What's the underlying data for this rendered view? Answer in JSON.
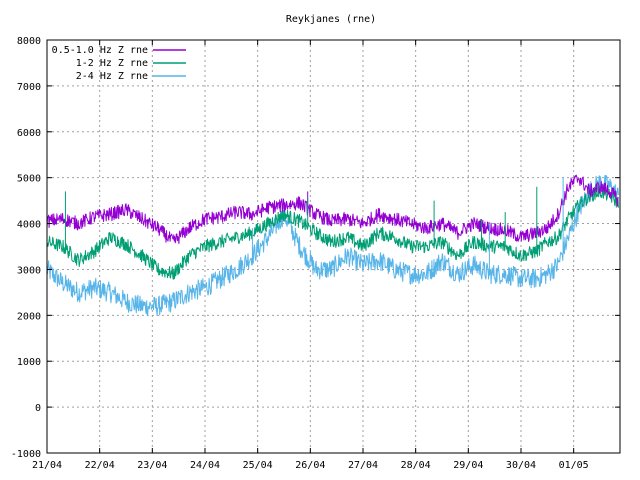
{
  "chart_data": {
    "type": "line",
    "title": "Reykjanes (rne)",
    "xlabel": "",
    "ylabel": "",
    "ylim": [
      -1000,
      8000
    ],
    "xlim": [
      0,
      10.88
    ],
    "yticks": [
      -1000,
      0,
      1000,
      2000,
      3000,
      4000,
      5000,
      6000,
      7000,
      8000
    ],
    "xtick_labels": [
      "21/04",
      "22/04",
      "23/04",
      "24/04",
      "25/04",
      "26/04",
      "27/04",
      "28/04",
      "29/04",
      "30/04",
      "01/05"
    ],
    "grid": true,
    "legend_position": "top-left",
    "series": [
      {
        "name": "0.5-1.0 Hz Z rne",
        "color": "#9400d3",
        "noise": 150,
        "x": [
          0,
          0.3,
          0.6,
          0.9,
          1.2,
          1.5,
          1.8,
          2.1,
          2.4,
          2.7,
          3.0,
          3.3,
          3.6,
          3.9,
          4.2,
          4.5,
          4.8,
          5.1,
          5.4,
          5.7,
          6.0,
          6.3,
          6.6,
          6.9,
          7.2,
          7.5,
          7.8,
          8.1,
          8.4,
          8.7,
          9.0,
          9.3,
          9.5,
          9.7,
          9.9,
          10.1,
          10.3,
          10.5,
          10.7,
          10.85
        ],
        "y": [
          4050,
          4100,
          4000,
          4150,
          4200,
          4300,
          4100,
          3900,
          3600,
          3900,
          4100,
          4150,
          4250,
          4200,
          4350,
          4400,
          4450,
          4200,
          4050,
          4100,
          4000,
          4200,
          4100,
          4000,
          3900,
          4000,
          3800,
          4000,
          3900,
          3850,
          3700,
          3800,
          3900,
          4200,
          4800,
          5000,
          4700,
          4800,
          4700,
          4500
        ]
      },
      {
        "name": "1-2 Hz Z rne",
        "color": "#009e73",
        "noise": 150,
        "x": [
          0,
          0.3,
          0.6,
          0.9,
          1.2,
          1.5,
          1.8,
          2.1,
          2.4,
          2.7,
          3.0,
          3.3,
          3.6,
          3.9,
          4.2,
          4.5,
          4.8,
          5.1,
          5.4,
          5.7,
          6.0,
          6.3,
          6.6,
          6.9,
          7.2,
          7.5,
          7.8,
          8.1,
          8.4,
          8.7,
          9.0,
          9.3,
          9.5,
          9.7,
          9.9,
          10.1,
          10.3,
          10.5,
          10.7,
          10.85
        ],
        "y": [
          3600,
          3500,
          3200,
          3400,
          3700,
          3550,
          3300,
          3000,
          2900,
          3300,
          3500,
          3600,
          3700,
          3800,
          4000,
          4200,
          4050,
          3800,
          3600,
          3700,
          3500,
          3800,
          3700,
          3500,
          3500,
          3600,
          3300,
          3600,
          3500,
          3500,
          3300,
          3400,
          3600,
          3700,
          4100,
          4400,
          4600,
          4700,
          4600,
          4450
        ]
      },
      {
        "name": "2-4 Hz Z rne",
        "color": "#56b4e9",
        "noise": 220,
        "x": [
          0,
          0.3,
          0.6,
          0.9,
          1.2,
          1.5,
          1.8,
          2.1,
          2.4,
          2.7,
          3.0,
          3.3,
          3.6,
          3.9,
          4.2,
          4.5,
          4.8,
          5.1,
          5.4,
          5.7,
          6.0,
          6.3,
          6.6,
          6.9,
          7.2,
          7.5,
          7.8,
          8.1,
          8.4,
          8.7,
          9.0,
          9.3,
          9.5,
          9.7,
          9.9,
          10.1,
          10.3,
          10.5,
          10.7,
          10.85
        ],
        "y": [
          3000,
          2700,
          2500,
          2600,
          2500,
          2300,
          2200,
          2200,
          2300,
          2500,
          2600,
          2800,
          3000,
          3300,
          3700,
          4200,
          3500,
          3000,
          3000,
          3300,
          3100,
          3200,
          3000,
          2900,
          2900,
          3200,
          2900,
          3100,
          2900,
          2900,
          2800,
          2800,
          2900,
          3100,
          3700,
          4300,
          4700,
          4900,
          4800,
          4600
        ]
      }
    ],
    "spikes": [
      {
        "series": 0,
        "x": 4.95,
        "y": 4700
      },
      {
        "series": 1,
        "x": 0.35,
        "y": 4700
      },
      {
        "series": 1,
        "x": 4.95,
        "y": 4550
      },
      {
        "series": 1,
        "x": 7.35,
        "y": 4500
      },
      {
        "series": 1,
        "x": 8.25,
        "y": 4100
      },
      {
        "series": 1,
        "x": 8.7,
        "y": 4250
      },
      {
        "series": 1,
        "x": 9.3,
        "y": 4800
      },
      {
        "series": 2,
        "x": 3.9,
        "y": 3900
      },
      {
        "series": 2,
        "x": 8.4,
        "y": 4000
      },
      {
        "series": 2,
        "x": 9.8,
        "y": 5000
      }
    ]
  }
}
